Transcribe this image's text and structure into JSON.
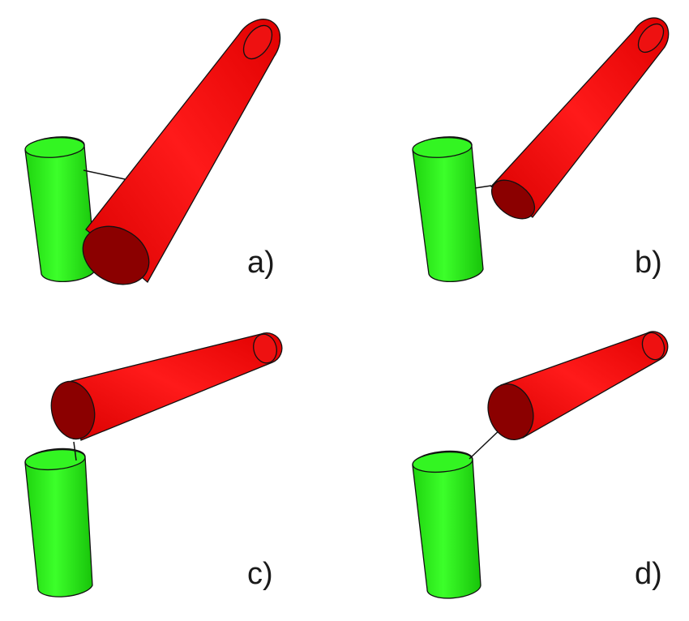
{
  "figure": {
    "panels": [
      {
        "label": "a)"
      },
      {
        "label": "b)"
      },
      {
        "label": "c)"
      },
      {
        "label": "d)"
      }
    ]
  },
  "colors": {
    "green_body": "#22ee11",
    "green_cap": "#33f522",
    "red_body": "#ee1111",
    "red_cap": "#8b0000",
    "outline": "#111111",
    "connector": "#111111"
  }
}
